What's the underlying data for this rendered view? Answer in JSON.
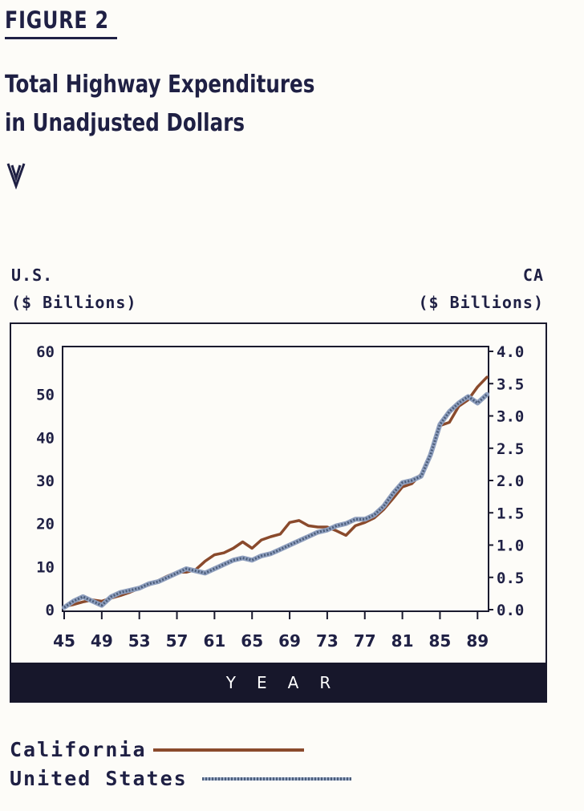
{
  "figure_label": "FIGURE 2",
  "title_line1": "Total Highway Expenditures",
  "title_line2": "in Unadjusted Dollars",
  "left_axis_title": [
    "U.S.",
    "($ Billions)"
  ],
  "right_axis_title": [
    "CA",
    "($ Billions)"
  ],
  "xlabel": "YEAR",
  "legend": {
    "california": "California",
    "united_states": "United States"
  },
  "colors": {
    "california": "#8a4a2c",
    "united_states": "#4b5d7a"
  },
  "chart_data": {
    "type": "line",
    "x_ticks": [
      45,
      49,
      53,
      57,
      61,
      65,
      69,
      73,
      77,
      81,
      85,
      89
    ],
    "left_ticks": [
      "60",
      "50",
      "40",
      "30",
      "20",
      "10",
      "0"
    ],
    "right_ticks": [
      "4.0",
      "3.5",
      "3.0",
      "2.5",
      "2.0",
      "1.5",
      "1.0",
      "0.5",
      "0.0"
    ],
    "ylim_left": [
      0,
      60
    ],
    "ylim_right": [
      0,
      4.0
    ],
    "xlim": [
      45,
      90
    ],
    "series": [
      {
        "name": "California",
        "axis": "right",
        "x": [
          45,
          46,
          47,
          48,
          49,
          50,
          51,
          52,
          53,
          54,
          55,
          56,
          57,
          58,
          59,
          60,
          61,
          62,
          63,
          64,
          65,
          66,
          67,
          68,
          69,
          70,
          71,
          72,
          73,
          74,
          75,
          76,
          77,
          78,
          79,
          80,
          81,
          82,
          83,
          84,
          85,
          86,
          87,
          88,
          89,
          90
        ],
        "y": [
          0.05,
          0.08,
          0.12,
          0.15,
          0.13,
          0.18,
          0.22,
          0.27,
          0.33,
          0.38,
          0.45,
          0.52,
          0.58,
          0.58,
          0.62,
          0.75,
          0.85,
          0.88,
          0.95,
          1.05,
          0.95,
          1.08,
          1.13,
          1.17,
          1.35,
          1.38,
          1.3,
          1.28,
          1.28,
          1.22,
          1.15,
          1.3,
          1.35,
          1.42,
          1.55,
          1.72,
          1.9,
          1.95,
          2.1,
          2.4,
          2.85,
          2.9,
          3.15,
          3.25,
          3.45,
          3.6
        ]
      },
      {
        "name": "United States",
        "axis": "left",
        "x": [
          45,
          46,
          47,
          48,
          49,
          50,
          51,
          52,
          53,
          54,
          55,
          56,
          57,
          58,
          59,
          60,
          61,
          62,
          63,
          64,
          65,
          66,
          67,
          68,
          69,
          70,
          71,
          72,
          73,
          74,
          75,
          76,
          77,
          78,
          79,
          80,
          81,
          82,
          83,
          84,
          85,
          86,
          87,
          88,
          89,
          90
        ],
        "y": [
          0.5,
          2,
          3,
          2,
          1,
          3,
          4,
          4.5,
          5,
          6,
          6.5,
          7.5,
          8.5,
          9.5,
          9,
          8.5,
          9.5,
          10.5,
          11.5,
          12,
          11.5,
          12.5,
          13,
          14,
          15,
          16,
          17,
          18,
          18.5,
          19.5,
          20,
          21,
          21,
          22,
          24,
          27,
          29.5,
          30,
          31,
          36,
          43,
          46,
          48,
          49.5,
          48,
          50
        ]
      }
    ]
  }
}
